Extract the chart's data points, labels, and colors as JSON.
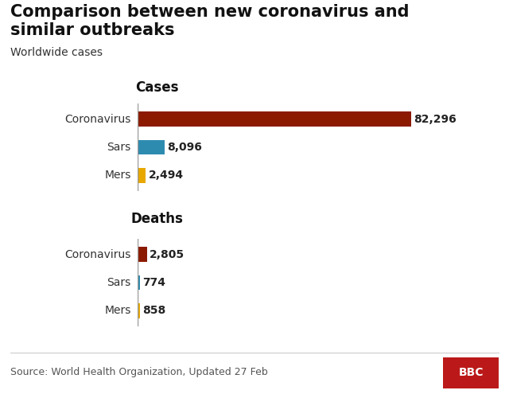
{
  "title": "Comparison between new coronavirus and\nsimilar outbreaks",
  "subtitle": "Worldwide cases",
  "source": "Source: World Health Organization, Updated 27 Feb",
  "cases_label": "Cases",
  "deaths_label": "Deaths",
  "categories": [
    "Coronavirus",
    "Sars",
    "Mers"
  ],
  "cases_values": [
    82296,
    8096,
    2494
  ],
  "cases_labels": [
    "82,296",
    "8,096",
    "2,494"
  ],
  "deaths_values": [
    2805,
    774,
    858
  ],
  "deaths_labels": [
    "2,805",
    "774",
    "858"
  ],
  "bar_colors": [
    "#8B1A00",
    "#2E8BB0",
    "#E8A800"
  ],
  "bg_color": "#ffffff",
  "title_fontsize": 15,
  "subtitle_fontsize": 10,
  "category_fontsize": 10,
  "value_fontsize": 10,
  "section_label_fontsize": 12,
  "source_fontsize": 9,
  "bbc_text": "BBC",
  "xlim_cases": 95000,
  "xlim_deaths": 95000
}
